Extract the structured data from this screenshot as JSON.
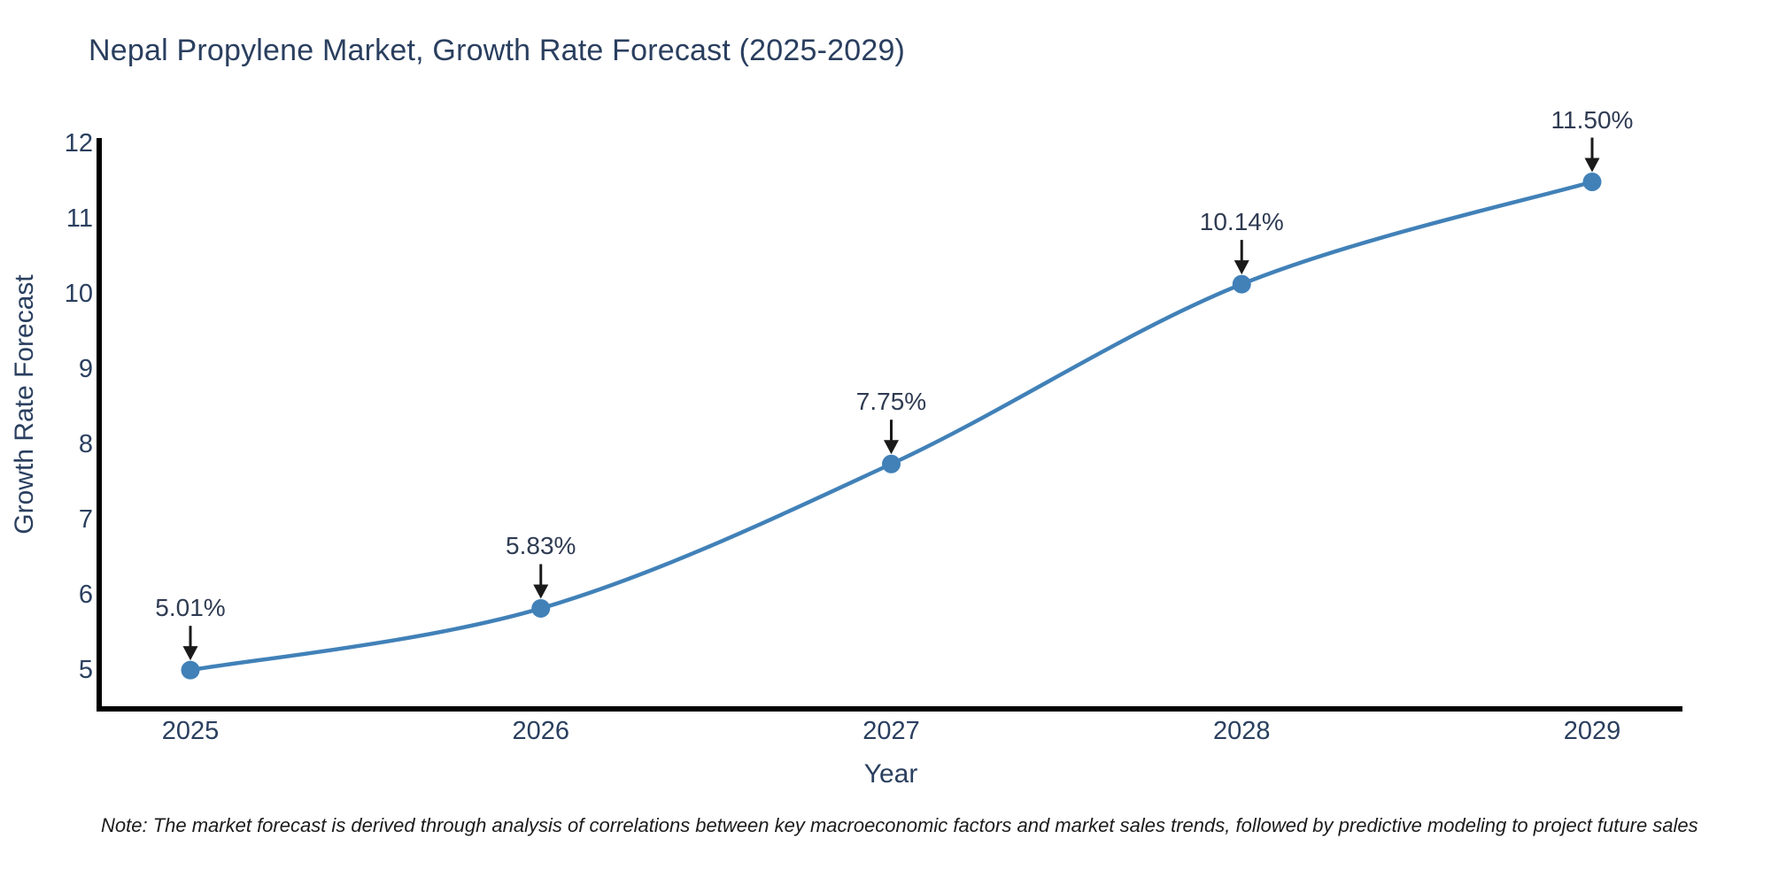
{
  "header": {
    "title": "Nepal Propylene Market, Growth Rate Forecast (2025-2029)"
  },
  "footer": {
    "note": "Note: The market forecast is derived through analysis of correlations between key macroeconomic factors and market sales trends, followed by predictive modeling to project future sales"
  },
  "chart_data": {
    "type": "line",
    "title": "Nepal Propylene Market, Growth Rate Forecast (2025-2029)",
    "xlabel": "Year",
    "ylabel": "Growth Rate Forecast",
    "categories": [
      2025,
      2026,
      2027,
      2028,
      2029
    ],
    "series": [
      {
        "name": "Growth Rate Forecast",
        "values": [
          5.01,
          5.83,
          7.75,
          10.14,
          11.5
        ],
        "point_labels": [
          "5.01%",
          "5.83%",
          "7.75%",
          "10.14%",
          "11.50%"
        ]
      }
    ],
    "yticks": [
      5,
      6,
      7,
      8,
      9,
      10,
      11,
      12
    ],
    "ylim": [
      5,
      12
    ],
    "line_shape": "spline",
    "markers": true,
    "annotations_with_arrows": true,
    "grid": false,
    "legend_position": "none",
    "colors": {
      "line": "#4181b8",
      "marker": "#4181b8",
      "axis": "#000000",
      "text": "#2a3f5f",
      "annotation_text": "#2f3b52",
      "arrow": "#1a1a1a",
      "background": "#ffffff"
    }
  }
}
